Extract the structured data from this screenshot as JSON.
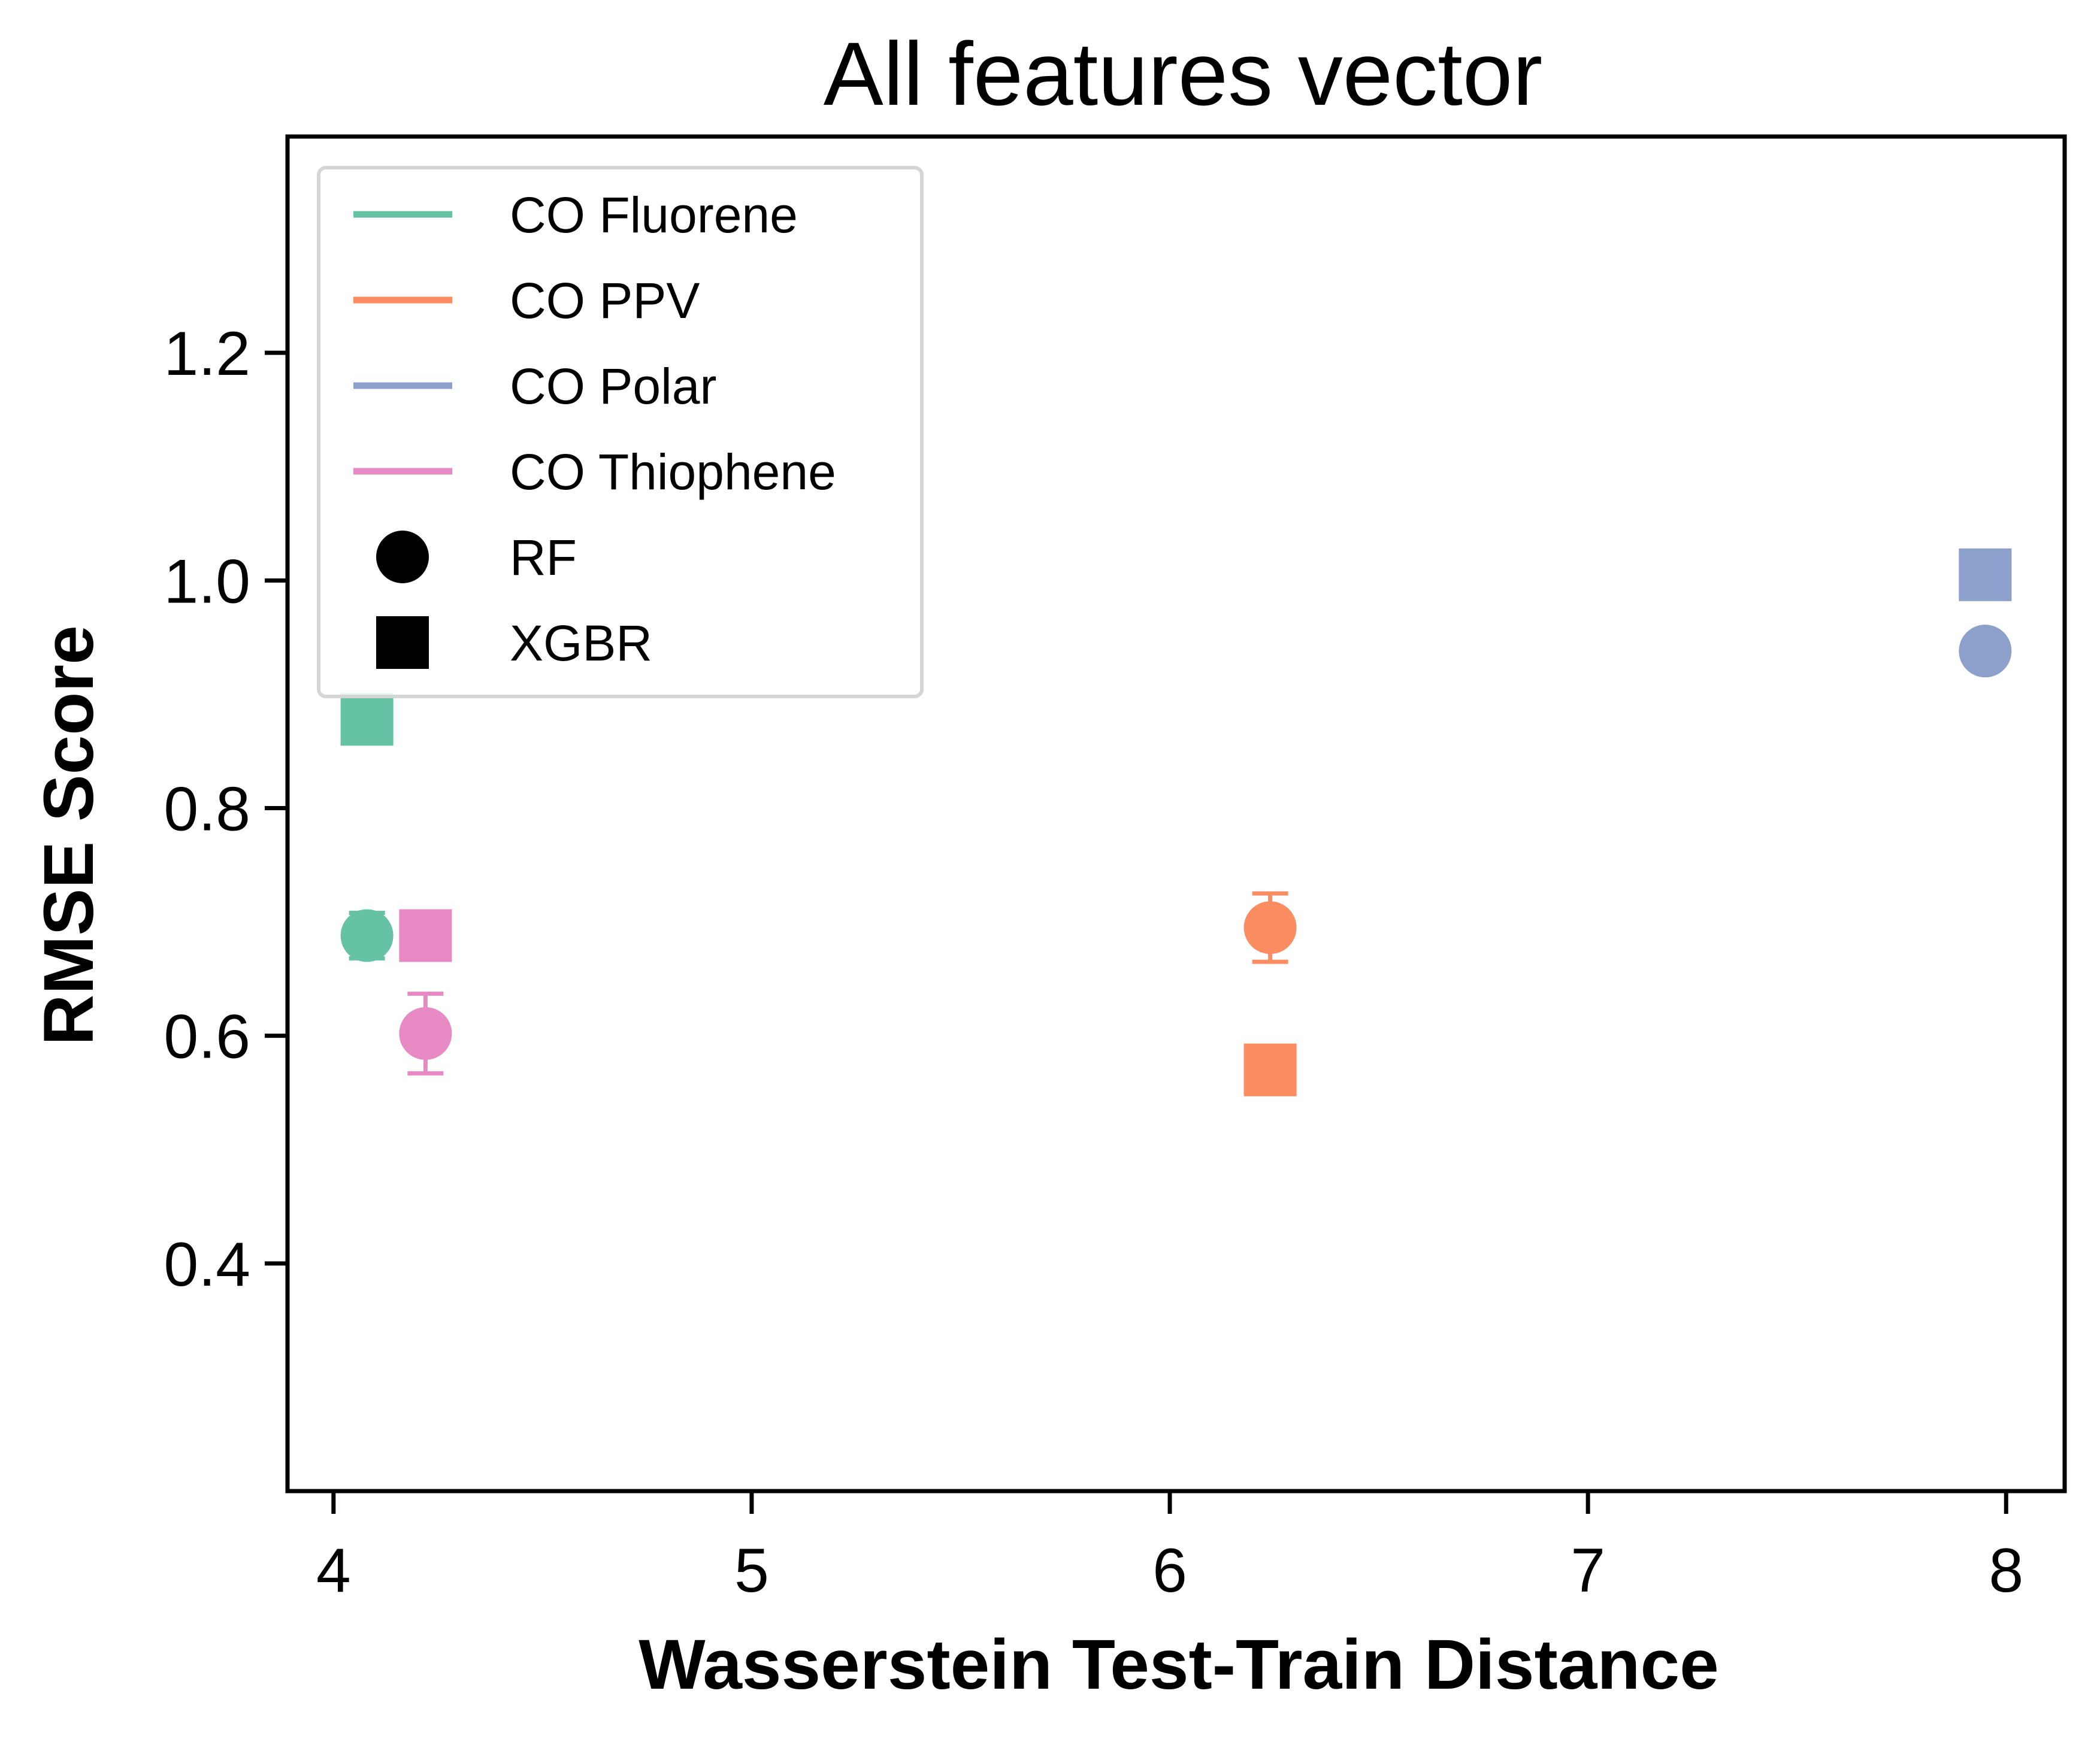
{
  "chart_data": {
    "type": "scatter",
    "title": "All features vector",
    "xlabel": "Wasserstein Test-Train Distance",
    "ylabel": "RMSE Score",
    "xlim": [
      3.89,
      8.14
    ],
    "ylim": [
      0.2,
      1.39
    ],
    "xticks": [
      "4",
      "5",
      "6",
      "7",
      "8"
    ],
    "yticks": [
      "0.4",
      "0.6",
      "0.8",
      "1.0",
      "1.2"
    ],
    "grid": false,
    "legend_position": "upper-left",
    "markers": [
      {
        "name": "RF",
        "shape": "circle"
      },
      {
        "name": "XGBR",
        "shape": "square"
      }
    ],
    "series": [
      {
        "name": "CO Fluorene",
        "color": "#66c2a5",
        "points": [
          {
            "model": "RF",
            "x": 4.08,
            "y": 0.688,
            "err": 0.02
          },
          {
            "model": "XGBR",
            "x": 4.08,
            "y": 0.878,
            "err": 0
          }
        ]
      },
      {
        "name": "CO PPV",
        "color": "#fc8d62",
        "points": [
          {
            "model": "RF",
            "x": 6.24,
            "y": 0.695,
            "err": 0.03
          },
          {
            "model": "XGBR",
            "x": 6.24,
            "y": 0.57,
            "err": 0
          }
        ]
      },
      {
        "name": "CO Polar",
        "color": "#8da0cb",
        "points": [
          {
            "model": "RF",
            "x": 7.95,
            "y": 0.938,
            "err": 0
          },
          {
            "model": "XGBR",
            "x": 7.95,
            "y": 1.005,
            "err": 0
          }
        ]
      },
      {
        "name": "CO Thiophene",
        "color": "#e78ac3",
        "points": [
          {
            "model": "RF",
            "x": 4.22,
            "y": 0.602,
            "err": 0.035
          },
          {
            "model": "XGBR",
            "x": 4.22,
            "y": 0.688,
            "err": 0
          }
        ]
      }
    ]
  }
}
